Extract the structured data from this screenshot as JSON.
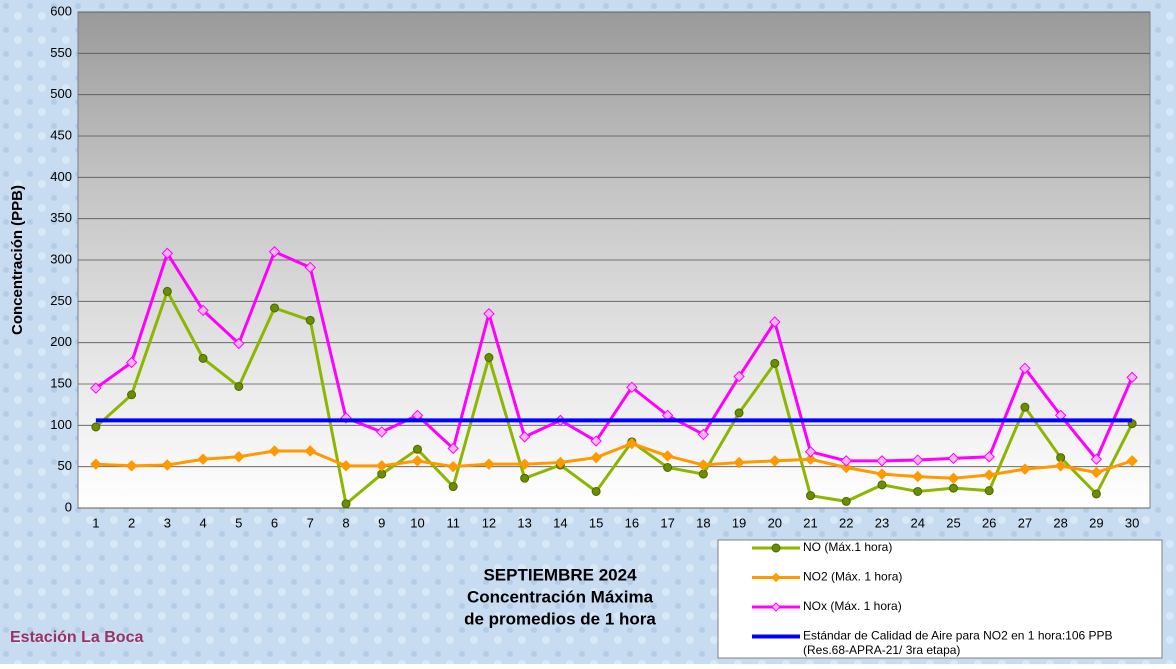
{
  "chart_data": {
    "type": "line",
    "title": [
      "SEPTIEMBRE 2024",
      "Concentración Máxima",
      "de promedios de 1 hora"
    ],
    "subtitle": "Estación La Boca",
    "y_label": "Concentración  (PPB)",
    "categories": [
      "1",
      "2",
      "3",
      "4",
      "5",
      "6",
      "7",
      "8",
      "9",
      "10",
      "11",
      "12",
      "13",
      "14",
      "15",
      "16",
      "17",
      "18",
      "19",
      "20",
      "21",
      "22",
      "23",
      "24",
      "25",
      "26",
      "27",
      "28",
      "29",
      "30"
    ],
    "series": [
      {
        "name": "NO (Máx.1 hora)",
        "color": "#8db600",
        "marker": "circle",
        "values": [
          98,
          137,
          262,
          181,
          147,
          242,
          227,
          5,
          41,
          71,
          26,
          182,
          36,
          52,
          20,
          80,
          49,
          41,
          115,
          175,
          15,
          8,
          28,
          20,
          24,
          21,
          122,
          61,
          17,
          102
        ]
      },
      {
        "name": "NO2 (Máx. 1 hora)",
        "color": "#ff9900",
        "marker": "diamond",
        "values": [
          53,
          51,
          52,
          59,
          62,
          69,
          69,
          51,
          51,
          57,
          50,
          53,
          53,
          55,
          61,
          78,
          63,
          52,
          55,
          57,
          59,
          49,
          41,
          38,
          36,
          40,
          47,
          51,
          43,
          57
        ]
      },
      {
        "name": "NOx (Máx. 1 hora)",
        "color": "#ff00ff",
        "marker": "diamond",
        "values": [
          145,
          176,
          308,
          239,
          199,
          310,
          291,
          109,
          92,
          112,
          72,
          235,
          86,
          106,
          81,
          146,
          112,
          89,
          159,
          225,
          68,
          57,
          57,
          58,
          60,
          62,
          169,
          112,
          59,
          158
        ]
      },
      {
        "name": "Estándar de Calidad de Aire para NO2 en 1 hora:106 PPB",
        "color": "#0000ff",
        "marker": "none",
        "values": [
          106,
          106,
          106,
          106,
          106,
          106,
          106,
          106,
          106,
          106,
          106,
          106,
          106,
          106,
          106,
          106,
          106,
          106,
          106,
          106,
          106,
          106,
          106,
          106,
          106,
          106,
          106,
          106,
          106,
          106
        ]
      }
    ],
    "legend_note": "(Res.68-APRA-21/ 3ra etapa)",
    "ylim": [
      0,
      600
    ],
    "yticks": [
      0,
      50,
      100,
      150,
      200,
      250,
      300,
      350,
      400,
      450,
      500,
      550,
      600
    ],
    "grid": true
  }
}
